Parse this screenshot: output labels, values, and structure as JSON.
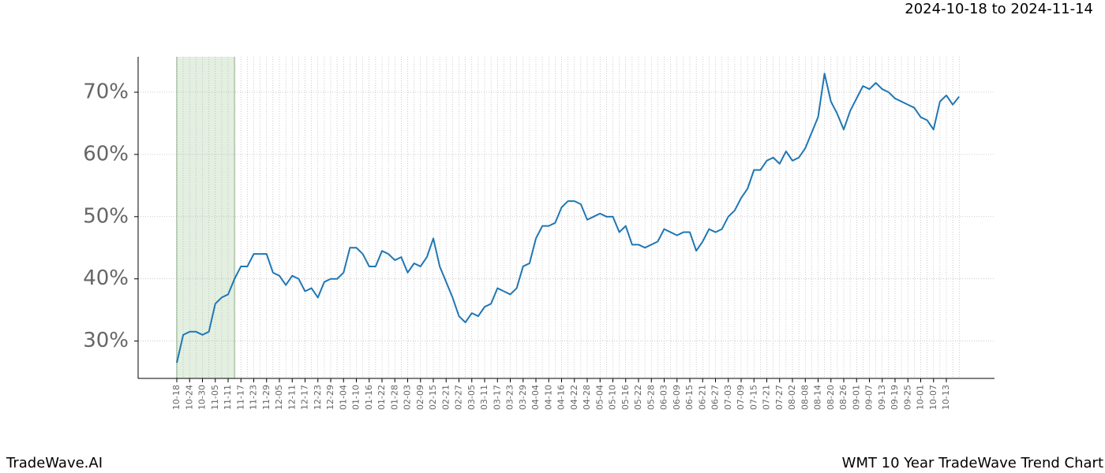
{
  "chart_data": {
    "type": "line",
    "title": "WMT 10 Year TradeWave Trend Chart",
    "date_range": "2024-10-18 to 2024-11-14",
    "brand": "TradeWave.AI",
    "categories": [
      "10-18",
      null,
      "10-24",
      null,
      "10-30",
      null,
      "11-05",
      null,
      "11-11",
      null,
      "11-17",
      null,
      "11-23",
      null,
      "11-29",
      null,
      "12-05",
      null,
      "12-11",
      null,
      "12-17",
      null,
      "12-23",
      null,
      "12-29",
      null,
      "01-04",
      null,
      "01-10",
      null,
      "01-16",
      null,
      "01-22",
      null,
      "01-28",
      null,
      "02-03",
      null,
      "02-09",
      null,
      "02-15",
      null,
      "02-21",
      null,
      "02-27",
      null,
      "03-05",
      null,
      "03-11",
      null,
      "03-17",
      null,
      "03-23",
      null,
      "03-29",
      null,
      "04-04",
      null,
      "04-10",
      null,
      "04-16",
      null,
      "04-22",
      null,
      "04-28",
      null,
      "05-04",
      null,
      "05-10",
      null,
      "05-16",
      null,
      "05-22",
      null,
      "05-28",
      null,
      "06-03",
      null,
      "06-09",
      null,
      "06-15",
      null,
      "06-21",
      null,
      "06-27",
      null,
      "07-03",
      null,
      "07-09",
      null,
      "07-15",
      null,
      "07-21",
      null,
      "07-27",
      null,
      "08-02",
      null,
      "08-08",
      null,
      "08-14",
      null,
      "08-20",
      null,
      "08-26",
      null,
      "09-01",
      null,
      "09-07",
      null,
      "09-13",
      null,
      "09-19",
      null,
      "09-25",
      null,
      "10-01",
      null,
      "10-07",
      null,
      "10-13",
      null,
      null
    ],
    "series": [
      {
        "color": "#1f77b4",
        "values": [
          26.5,
          31,
          31.5,
          31.5,
          31,
          31.5,
          36,
          37,
          37.5,
          40,
          42,
          42,
          44,
          44,
          44,
          41,
          40.5,
          39,
          40.5,
          40,
          38,
          38.5,
          37,
          39.5,
          40,
          40,
          41,
          45,
          45,
          44,
          42,
          42,
          44.5,
          44,
          43,
          43.5,
          41,
          42.5,
          42,
          43.5,
          46.5,
          42,
          39.5,
          37,
          34,
          33,
          34.5,
          34,
          35.5,
          36,
          38.5,
          38,
          37.5,
          38.5,
          42,
          42.5,
          46.5,
          48.5,
          48.5,
          49,
          51.5,
          52.5,
          52.5,
          52,
          49.5,
          50,
          50.5,
          50,
          50,
          47.5,
          48.5,
          45.5,
          45.5,
          45,
          45.5,
          46,
          48,
          47.5,
          47,
          47.5,
          47.5,
          44.5,
          46,
          48,
          47.5,
          48,
          50,
          51,
          53,
          54.5,
          57.5,
          57.5,
          59,
          59.5,
          58.5,
          60.5,
          59,
          59.5,
          61,
          63.5,
          66,
          73,
          68.5,
          66.5,
          64,
          67,
          69,
          71,
          70.5,
          71.5,
          70.5,
          70,
          69,
          68.5,
          68,
          67.5,
          66,
          65.5,
          64,
          68.5,
          69.5,
          68,
          69.3
        ]
      }
    ],
    "ylim": [
      24,
      75.7
    ],
    "yticks": [
      {
        "value": 30,
        "label": "30%"
      },
      {
        "value": 40,
        "label": "40%"
      },
      {
        "value": 50,
        "label": "50%"
      },
      {
        "value": 60,
        "label": "60%"
      },
      {
        "value": 70,
        "label": "70%"
      }
    ],
    "grid": true,
    "highlight": {
      "start": 0,
      "end": 9,
      "color": "#e3efe0"
    }
  }
}
